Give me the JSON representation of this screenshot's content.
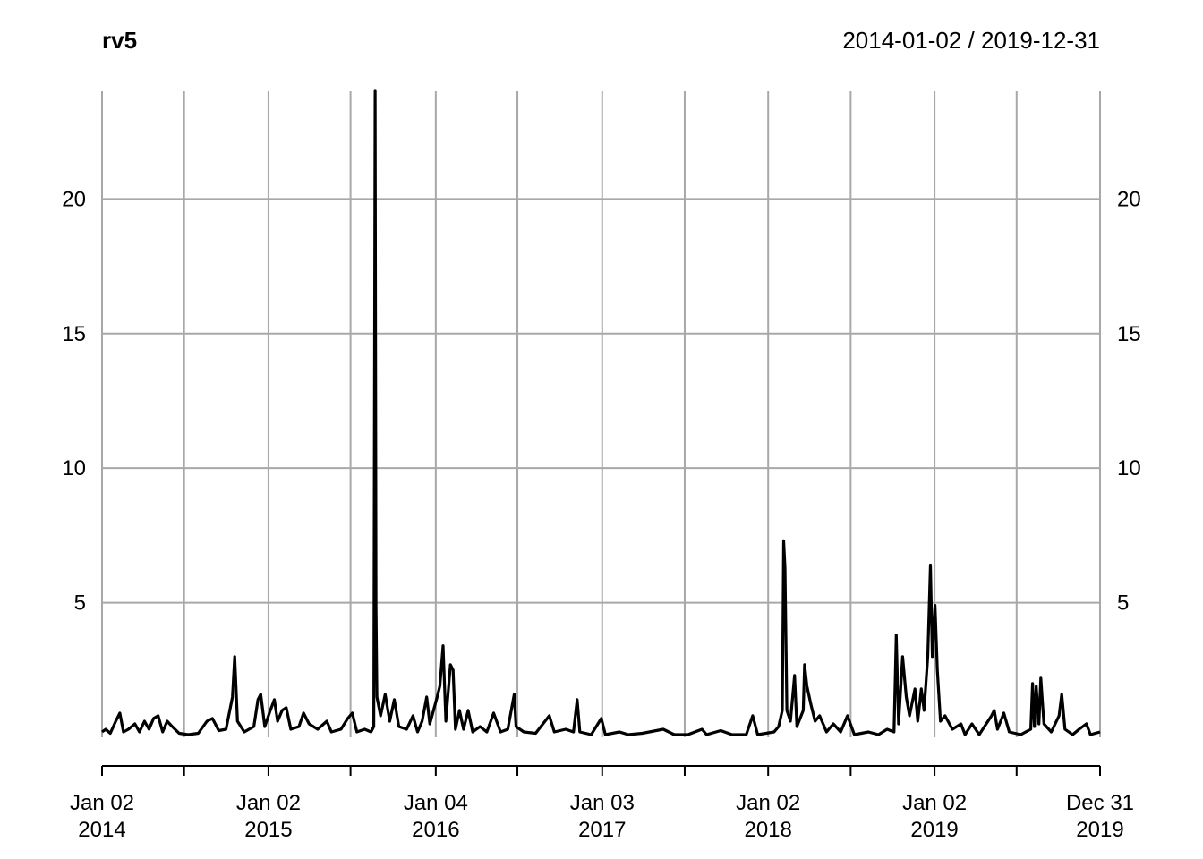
{
  "chart_data": {
    "type": "line",
    "title": "rv5",
    "date_range": "2014-01-02 / 2019-12-31",
    "xlim": [
      "2014-01-02",
      "2019-12-31"
    ],
    "ylim": [
      0,
      24
    ],
    "grid": true,
    "y_ticks": [
      {
        "value": 5,
        "label": "5"
      },
      {
        "value": 10,
        "label": "10"
      },
      {
        "value": 15,
        "label": "15"
      },
      {
        "value": 20,
        "label": "20"
      }
    ],
    "x_gridlines": [
      "2014-01-02",
      "2014-07-01",
      "2015-01-02",
      "2015-07-01",
      "2016-01-04",
      "2016-07-01",
      "2017-01-03",
      "2017-07-03",
      "2018-01-02",
      "2018-07-02",
      "2019-01-02",
      "2019-07-01",
      "2019-12-31"
    ],
    "x_ticks": [
      {
        "date": "2014-01-02",
        "line1": "Jan 02",
        "line2": "2014"
      },
      {
        "date": "2015-01-02",
        "line1": "Jan 02",
        "line2": "2015"
      },
      {
        "date": "2016-01-04",
        "line1": "Jan 04",
        "line2": "2016"
      },
      {
        "date": "2017-01-03",
        "line1": "Jan 03",
        "line2": "2017"
      },
      {
        "date": "2018-01-02",
        "line1": "Jan 02",
        "line2": "2018"
      },
      {
        "date": "2019-01-02",
        "line1": "Jan 02",
        "line2": "2019"
      },
      {
        "date": "2019-12-31",
        "line1": "Dec 31",
        "line2": "2019"
      }
    ],
    "series": [
      {
        "points": [
          [
            "2014-01-02",
            0.2
          ],
          [
            "2014-01-10",
            0.3
          ],
          [
            "2014-01-20",
            0.15
          ],
          [
            "2014-02-01",
            0.6
          ],
          [
            "2014-02-10",
            0.9
          ],
          [
            "2014-02-18",
            0.2
          ],
          [
            "2014-03-01",
            0.3
          ],
          [
            "2014-03-15",
            0.5
          ],
          [
            "2014-03-25",
            0.2
          ],
          [
            "2014-04-05",
            0.6
          ],
          [
            "2014-04-15",
            0.3
          ],
          [
            "2014-04-25",
            0.7
          ],
          [
            "2014-05-05",
            0.8
          ],
          [
            "2014-05-15",
            0.2
          ],
          [
            "2014-05-25",
            0.6
          ],
          [
            "2014-06-05",
            0.4
          ],
          [
            "2014-06-20",
            0.15
          ],
          [
            "2014-07-10",
            0.1
          ],
          [
            "2014-08-01",
            0.15
          ],
          [
            "2014-08-20",
            0.6
          ],
          [
            "2014-09-01",
            0.7
          ],
          [
            "2014-09-15",
            0.25
          ],
          [
            "2014-10-01",
            0.3
          ],
          [
            "2014-10-15",
            1.5
          ],
          [
            "2014-10-20",
            3.0
          ],
          [
            "2014-10-26",
            0.6
          ],
          [
            "2014-11-10",
            0.2
          ],
          [
            "2014-12-01",
            0.4
          ],
          [
            "2014-12-10",
            1.4
          ],
          [
            "2014-12-16",
            1.6
          ],
          [
            "2014-12-25",
            0.4
          ],
          [
            "2015-01-06",
            1.0
          ],
          [
            "2015-01-15",
            1.4
          ],
          [
            "2015-01-22",
            0.6
          ],
          [
            "2015-02-01",
            1.0
          ],
          [
            "2015-02-10",
            1.1
          ],
          [
            "2015-02-20",
            0.3
          ],
          [
            "2015-03-10",
            0.4
          ],
          [
            "2015-03-20",
            0.9
          ],
          [
            "2015-04-01",
            0.5
          ],
          [
            "2015-04-20",
            0.3
          ],
          [
            "2015-05-10",
            0.6
          ],
          [
            "2015-05-20",
            0.2
          ],
          [
            "2015-06-10",
            0.3
          ],
          [
            "2015-06-25",
            0.7
          ],
          [
            "2015-07-05",
            0.9
          ],
          [
            "2015-07-15",
            0.2
          ],
          [
            "2015-08-01",
            0.3
          ],
          [
            "2015-08-15",
            0.2
          ],
          [
            "2015-08-21",
            0.4
          ],
          [
            "2015-08-24",
            24.0
          ],
          [
            "2015-08-26",
            4.8
          ],
          [
            "2015-08-28",
            1.5
          ],
          [
            "2015-09-05",
            0.8
          ],
          [
            "2015-09-15",
            1.6
          ],
          [
            "2015-09-25",
            0.6
          ],
          [
            "2015-10-05",
            1.4
          ],
          [
            "2015-10-15",
            0.4
          ],
          [
            "2015-11-01",
            0.3
          ],
          [
            "2015-11-15",
            0.8
          ],
          [
            "2015-11-25",
            0.2
          ],
          [
            "2015-12-05",
            0.6
          ],
          [
            "2015-12-15",
            1.5
          ],
          [
            "2015-12-22",
            0.5
          ],
          [
            "2016-01-07",
            1.5
          ],
          [
            "2016-01-13",
            1.9
          ],
          [
            "2016-01-20",
            3.4
          ],
          [
            "2016-01-26",
            0.6
          ],
          [
            "2016-02-05",
            2.7
          ],
          [
            "2016-02-11",
            2.5
          ],
          [
            "2016-02-16",
            0.3
          ],
          [
            "2016-02-25",
            1.0
          ],
          [
            "2016-03-05",
            0.3
          ],
          [
            "2016-03-15",
            1.0
          ],
          [
            "2016-03-25",
            0.2
          ],
          [
            "2016-04-10",
            0.4
          ],
          [
            "2016-04-25",
            0.2
          ],
          [
            "2016-05-10",
            0.9
          ],
          [
            "2016-05-25",
            0.2
          ],
          [
            "2016-06-10",
            0.3
          ],
          [
            "2016-06-24",
            1.6
          ],
          [
            "2016-06-28",
            0.4
          ],
          [
            "2016-07-15",
            0.2
          ],
          [
            "2016-08-10",
            0.15
          ],
          [
            "2016-09-09",
            0.8
          ],
          [
            "2016-09-20",
            0.2
          ],
          [
            "2016-10-15",
            0.3
          ],
          [
            "2016-11-01",
            0.2
          ],
          [
            "2016-11-09",
            1.4
          ],
          [
            "2016-11-15",
            0.2
          ],
          [
            "2016-12-10",
            0.1
          ],
          [
            "2017-01-01",
            0.7
          ],
          [
            "2017-01-10",
            0.1
          ],
          [
            "2017-02-10",
            0.2
          ],
          [
            "2017-03-01",
            0.1
          ],
          [
            "2017-04-01",
            0.15
          ],
          [
            "2017-05-17",
            0.3
          ],
          [
            "2017-06-10",
            0.1
          ],
          [
            "2017-07-10",
            0.1
          ],
          [
            "2017-08-10",
            0.3
          ],
          [
            "2017-08-20",
            0.1
          ],
          [
            "2017-09-20",
            0.25
          ],
          [
            "2017-10-15",
            0.1
          ],
          [
            "2017-11-15",
            0.1
          ],
          [
            "2017-11-29",
            0.8
          ],
          [
            "2017-12-10",
            0.1
          ],
          [
            "2018-01-15",
            0.2
          ],
          [
            "2018-01-25",
            0.4
          ],
          [
            "2018-02-02",
            1.0
          ],
          [
            "2018-02-05",
            7.3
          ],
          [
            "2018-02-08",
            6.3
          ],
          [
            "2018-02-12",
            1.0
          ],
          [
            "2018-02-20",
            0.6
          ],
          [
            "2018-03-01",
            2.3
          ],
          [
            "2018-03-06",
            0.4
          ],
          [
            "2018-03-20",
            1.0
          ],
          [
            "2018-03-23",
            2.7
          ],
          [
            "2018-03-28",
            1.9
          ],
          [
            "2018-04-06",
            1.2
          ],
          [
            "2018-04-15",
            0.6
          ],
          [
            "2018-04-25",
            0.8
          ],
          [
            "2018-05-10",
            0.2
          ],
          [
            "2018-05-25",
            0.5
          ],
          [
            "2018-06-10",
            0.2
          ],
          [
            "2018-06-25",
            0.8
          ],
          [
            "2018-07-10",
            0.1
          ],
          [
            "2018-08-10",
            0.2
          ],
          [
            "2018-09-01",
            0.1
          ],
          [
            "2018-09-20",
            0.3
          ],
          [
            "2018-10-05",
            0.2
          ],
          [
            "2018-10-10",
            3.8
          ],
          [
            "2018-10-15",
            0.5
          ],
          [
            "2018-10-24",
            3.0
          ],
          [
            "2018-11-01",
            1.5
          ],
          [
            "2018-11-08",
            0.8
          ],
          [
            "2018-11-20",
            1.8
          ],
          [
            "2018-11-26",
            0.6
          ],
          [
            "2018-12-04",
            1.8
          ],
          [
            "2018-12-10",
            1.0
          ],
          [
            "2018-12-18",
            3.0
          ],
          [
            "2018-12-24",
            6.4
          ],
          [
            "2018-12-28",
            3.0
          ],
          [
            "2019-01-03",
            4.9
          ],
          [
            "2019-01-08",
            2.5
          ],
          [
            "2019-01-15",
            0.6
          ],
          [
            "2019-01-25",
            0.8
          ],
          [
            "2019-02-10",
            0.3
          ],
          [
            "2019-03-01",
            0.5
          ],
          [
            "2019-03-10",
            0.1
          ],
          [
            "2019-03-25",
            0.5
          ],
          [
            "2019-04-10",
            0.1
          ],
          [
            "2019-05-07",
            0.8
          ],
          [
            "2019-05-13",
            1.0
          ],
          [
            "2019-05-20",
            0.3
          ],
          [
            "2019-06-03",
            0.9
          ],
          [
            "2019-06-15",
            0.2
          ],
          [
            "2019-07-10",
            0.1
          ],
          [
            "2019-08-01",
            0.3
          ],
          [
            "2019-08-05",
            2.0
          ],
          [
            "2019-08-09",
            0.4
          ],
          [
            "2019-08-13",
            1.9
          ],
          [
            "2019-08-19",
            0.5
          ],
          [
            "2019-08-23",
            2.2
          ],
          [
            "2019-08-30",
            0.5
          ],
          [
            "2019-09-15",
            0.2
          ],
          [
            "2019-10-02",
            0.8
          ],
          [
            "2019-10-08",
            1.6
          ],
          [
            "2019-10-15",
            0.3
          ],
          [
            "2019-11-01",
            0.1
          ],
          [
            "2019-11-15",
            0.3
          ],
          [
            "2019-12-01",
            0.5
          ],
          [
            "2019-12-10",
            0.1
          ],
          [
            "2019-12-31",
            0.2
          ]
        ]
      }
    ]
  }
}
